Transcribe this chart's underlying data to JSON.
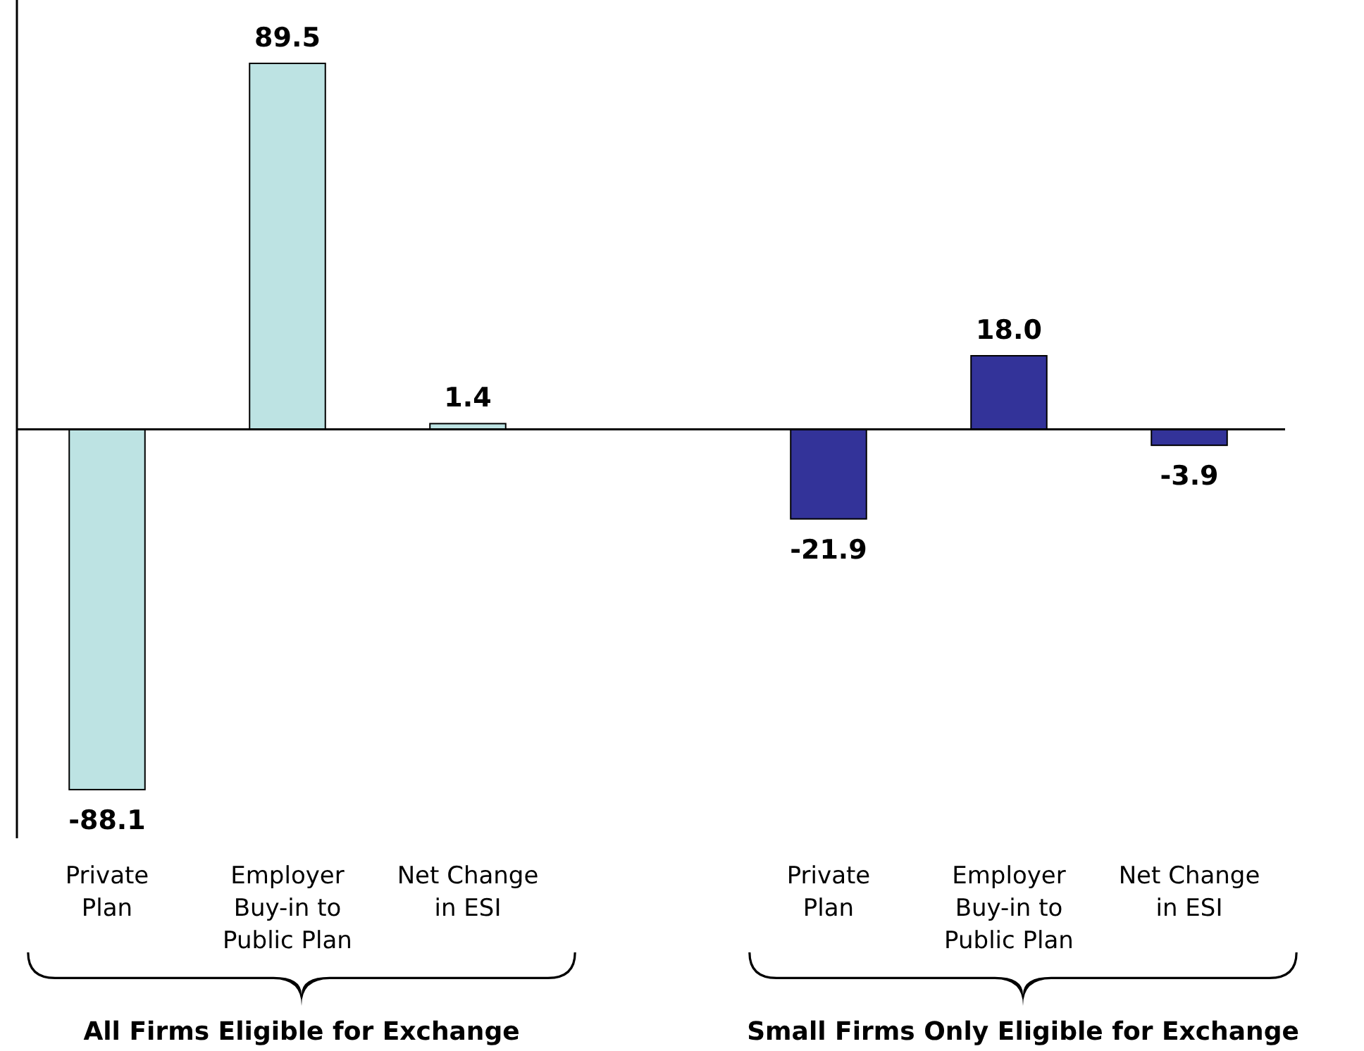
{
  "chart_data": {
    "type": "bar",
    "categories": [
      "Private Plan",
      "Employer Buy-in to Public Plan",
      "Net Change in ESI",
      null,
      "Private Plan",
      "Employer Buy-in to Public Plan",
      "Net Change in ESI"
    ],
    "values": [
      -88.1,
      89.5,
      1.4,
      null,
      -21.9,
      18.0,
      -3.9
    ],
    "colors": [
      "#bde3e3",
      "#bde3e3",
      "#bde3e3",
      null,
      "#333399",
      "#333399",
      "#333399"
    ],
    "value_labels": [
      "-88.1",
      "89.5",
      "1.4",
      null,
      "-21.9",
      "18.0",
      "-3.9"
    ],
    "ylim": [
      -100,
      105
    ],
    "tick_labels": "x",
    "annotations": [
      "All Firms Eligible for Exchange",
      "Small Firms Only Eligible for Exchange"
    ]
  }
}
